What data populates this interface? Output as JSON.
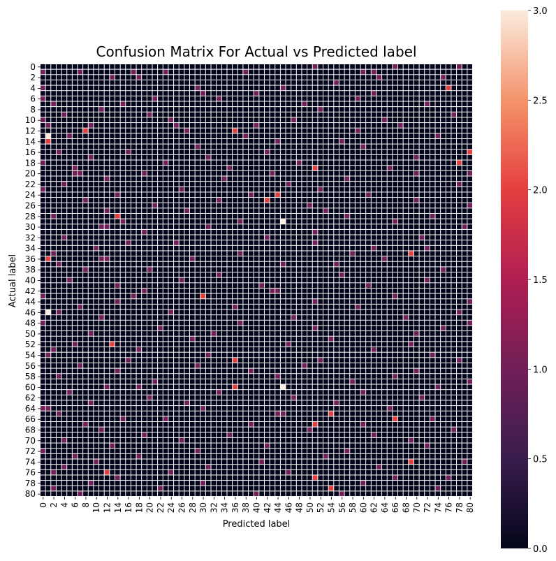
{
  "chart_data": {
    "type": "heatmap",
    "title": "Confusion Matrix For Actual vs Predicted label",
    "xlabel": "Predicted label",
    "ylabel": "Actual label",
    "n_classes": 81,
    "x_ticks": [
      0,
      2,
      4,
      6,
      8,
      10,
      12,
      14,
      16,
      18,
      20,
      22,
      24,
      26,
      28,
      30,
      32,
      34,
      36,
      38,
      40,
      42,
      44,
      46,
      48,
      50,
      52,
      54,
      56,
      58,
      60,
      62,
      64,
      66,
      68,
      70,
      72,
      74,
      76,
      78,
      80
    ],
    "y_ticks": [
      0,
      2,
      4,
      6,
      8,
      10,
      12,
      14,
      16,
      18,
      20,
      22,
      24,
      26,
      28,
      30,
      32,
      34,
      36,
      38,
      40,
      42,
      44,
      46,
      48,
      50,
      52,
      54,
      56,
      58,
      60,
      62,
      64,
      66,
      68,
      70,
      72,
      74,
      76,
      78,
      80
    ],
    "colorbar": {
      "min": 0.0,
      "max": 3.0,
      "ticks": [
        "0.0",
        "0.5",
        "1.0",
        "1.5",
        "2.0",
        "2.5",
        "3.0"
      ],
      "colormap": "rocket"
    },
    "grid_line_color": "#ffffff",
    "counts_3": [
      [
        13,
        1
      ],
      [
        29,
        45
      ],
      [
        46,
        1
      ],
      [
        60,
        45
      ]
    ],
    "counts_2": [
      [
        4,
        76
      ],
      [
        12,
        8
      ],
      [
        12,
        36
      ],
      [
        14,
        1
      ],
      [
        16,
        80
      ],
      [
        18,
        78
      ],
      [
        19,
        51
      ],
      [
        24,
        44
      ],
      [
        25,
        42
      ],
      [
        28,
        14
      ],
      [
        35,
        69
      ],
      [
        36,
        1
      ],
      [
        43,
        30
      ],
      [
        52,
        13
      ],
      [
        55,
        36
      ],
      [
        60,
        36
      ],
      [
        65,
        54
      ],
      [
        66,
        66
      ],
      [
        67,
        51
      ],
      [
        74,
        69
      ],
      [
        76,
        12
      ],
      [
        77,
        51
      ],
      [
        79,
        54
      ]
    ],
    "counts_1": [
      [
        0,
        51
      ],
      [
        0,
        66
      ],
      [
        0,
        78
      ],
      [
        1,
        0
      ],
      [
        1,
        7
      ],
      [
        1,
        17
      ],
      [
        1,
        23
      ],
      [
        1,
        38
      ],
      [
        1,
        60
      ],
      [
        1,
        62
      ],
      [
        2,
        13
      ],
      [
        2,
        18
      ],
      [
        2,
        63
      ],
      [
        2,
        75
      ],
      [
        3,
        55
      ],
      [
        4,
        0
      ],
      [
        4,
        29
      ],
      [
        4,
        45
      ],
      [
        5,
        30
      ],
      [
        5,
        40
      ],
      [
        5,
        62
      ],
      [
        6,
        0
      ],
      [
        6,
        21
      ],
      [
        6,
        33
      ],
      [
        6,
        59
      ],
      [
        7,
        2
      ],
      [
        7,
        15
      ],
      [
        7,
        49
      ],
      [
        7,
        72
      ],
      [
        8,
        11
      ],
      [
        8,
        52
      ],
      [
        9,
        4
      ],
      [
        9,
        20
      ],
      [
        9,
        77
      ],
      [
        10,
        0
      ],
      [
        10,
        24
      ],
      [
        10,
        47
      ],
      [
        10,
        64
      ],
      [
        11,
        1
      ],
      [
        11,
        9
      ],
      [
        11,
        25
      ],
      [
        11,
        40
      ],
      [
        11,
        67
      ],
      [
        12,
        27
      ],
      [
        12,
        59
      ],
      [
        13,
        5
      ],
      [
        13,
        38
      ],
      [
        13,
        74
      ],
      [
        14,
        44
      ],
      [
        14,
        56
      ],
      [
        15,
        29
      ],
      [
        15,
        60
      ],
      [
        16,
        3
      ],
      [
        16,
        16
      ],
      [
        16,
        42
      ],
      [
        17,
        9
      ],
      [
        17,
        31
      ],
      [
        17,
        70
      ],
      [
        18,
        23
      ],
      [
        18,
        48
      ],
      [
        18,
        0
      ],
      [
        19,
        6
      ],
      [
        19,
        35
      ],
      [
        19,
        65
      ],
      [
        20,
        6
      ],
      [
        20,
        7
      ],
      [
        20,
        19
      ],
      [
        20,
        43
      ],
      [
        20,
        70
      ],
      [
        20,
        80
      ],
      [
        21,
        12
      ],
      [
        21,
        34
      ],
      [
        21,
        57
      ],
      [
        22,
        4
      ],
      [
        22,
        46
      ],
      [
        22,
        78
      ],
      [
        23,
        0
      ],
      [
        23,
        26
      ],
      [
        23,
        52
      ],
      [
        24,
        14
      ],
      [
        24,
        39
      ],
      [
        24,
        61
      ],
      [
        25,
        8
      ],
      [
        25,
        33
      ],
      [
        25,
        70
      ],
      [
        26,
        21
      ],
      [
        26,
        50
      ],
      [
        26,
        80
      ],
      [
        27,
        12
      ],
      [
        27,
        27
      ],
      [
        27,
        53
      ],
      [
        28,
        2
      ],
      [
        28,
        57
      ],
      [
        28,
        73
      ],
      [
        29,
        15
      ],
      [
        29,
        37
      ],
      [
        29,
        66
      ],
      [
        30,
        11
      ],
      [
        30,
        12
      ],
      [
        30,
        31
      ],
      [
        30,
        79
      ],
      [
        31,
        19
      ],
      [
        31,
        51
      ],
      [
        32,
        4
      ],
      [
        32,
        42
      ],
      [
        32,
        71
      ],
      [
        33,
        16
      ],
      [
        33,
        51
      ],
      [
        33,
        25
      ],
      [
        34,
        10
      ],
      [
        34,
        62
      ],
      [
        34,
        72
      ],
      [
        35,
        2
      ],
      [
        35,
        37
      ],
      [
        35,
        58
      ],
      [
        36,
        11
      ],
      [
        36,
        12
      ],
      [
        36,
        28
      ],
      [
        36,
        64
      ],
      [
        37,
        3
      ],
      [
        37,
        45
      ],
      [
        37,
        55
      ],
      [
        38,
        8
      ],
      [
        38,
        20
      ],
      [
        38,
        75
      ],
      [
        39,
        33
      ],
      [
        39,
        56
      ],
      [
        40,
        5
      ],
      [
        40,
        26
      ],
      [
        40,
        72
      ],
      [
        41,
        14
      ],
      [
        41,
        41
      ],
      [
        41,
        61
      ],
      [
        42,
        19
      ],
      [
        42,
        43
      ],
      [
        42,
        44
      ],
      [
        43,
        0
      ],
      [
        43,
        17
      ],
      [
        43,
        66
      ],
      [
        44,
        14
      ],
      [
        44,
        51
      ],
      [
        44,
        80
      ],
      [
        45,
        7
      ],
      [
        45,
        36
      ],
      [
        45,
        59
      ],
      [
        46,
        3
      ],
      [
        46,
        24
      ],
      [
        46,
        78
      ],
      [
        47,
        11
      ],
      [
        47,
        47
      ],
      [
        47,
        68
      ],
      [
        48,
        0
      ],
      [
        48,
        37
      ],
      [
        48,
        80
      ],
      [
        49,
        22
      ],
      [
        49,
        51
      ],
      [
        49,
        75
      ],
      [
        50,
        9
      ],
      [
        50,
        32
      ],
      [
        50,
        70
      ],
      [
        51,
        28
      ],
      [
        51,
        54
      ],
      [
        52,
        6
      ],
      [
        52,
        46
      ],
      [
        52,
        69
      ],
      [
        53,
        2
      ],
      [
        53,
        18
      ],
      [
        53,
        62
      ],
      [
        54,
        1
      ],
      [
        54,
        31
      ],
      [
        54,
        73
      ],
      [
        55,
        16
      ],
      [
        55,
        52
      ],
      [
        55,
        78
      ],
      [
        56,
        7
      ],
      [
        56,
        29
      ],
      [
        56,
        49
      ],
      [
        57,
        14
      ],
      [
        57,
        39
      ],
      [
        57,
        70
      ],
      [
        58,
        3
      ],
      [
        58,
        44
      ],
      [
        58,
        66
      ],
      [
        59,
        21
      ],
      [
        59,
        58
      ],
      [
        59,
        80
      ],
      [
        60,
        12
      ],
      [
        60,
        18
      ],
      [
        60,
        74
      ],
      [
        61,
        5
      ],
      [
        61,
        33
      ],
      [
        61,
        60
      ],
      [
        62,
        20
      ],
      [
        62,
        47
      ],
      [
        62,
        71
      ],
      [
        63,
        9
      ],
      [
        63,
        27
      ],
      [
        63,
        55
      ],
      [
        64,
        0
      ],
      [
        64,
        1
      ],
      [
        64,
        30
      ],
      [
        64,
        65
      ],
      [
        65,
        3
      ],
      [
        65,
        44
      ],
      [
        65,
        45
      ],
      [
        66,
        15
      ],
      [
        66,
        23
      ],
      [
        66,
        73
      ],
      [
        67,
        8
      ],
      [
        67,
        39
      ],
      [
        67,
        60
      ],
      [
        68,
        11
      ],
      [
        68,
        50
      ],
      [
        68,
        77
      ],
      [
        69,
        19
      ],
      [
        69,
        35
      ],
      [
        69,
        62
      ],
      [
        70,
        4
      ],
      [
        70,
        26
      ],
      [
        70,
        69
      ],
      [
        71,
        13
      ],
      [
        71,
        42
      ],
      [
        71,
        72
      ],
      [
        72,
        0
      ],
      [
        72,
        29
      ],
      [
        72,
        57
      ],
      [
        73,
        6
      ],
      [
        73,
        18
      ],
      [
        73,
        53
      ],
      [
        74,
        10
      ],
      [
        74,
        41
      ],
      [
        74,
        79
      ],
      [
        75,
        4
      ],
      [
        75,
        31
      ],
      [
        75,
        63
      ],
      [
        76,
        2
      ],
      [
        76,
        24
      ],
      [
        76,
        46
      ],
      [
        77,
        14
      ],
      [
        77,
        66
      ],
      [
        77,
        76
      ],
      [
        78,
        9
      ],
      [
        78,
        30
      ],
      [
        78,
        60
      ],
      [
        79,
        2
      ],
      [
        79,
        22
      ],
      [
        79,
        74
      ],
      [
        80,
        7
      ],
      [
        80,
        40
      ],
      [
        80,
        56
      ]
    ]
  }
}
